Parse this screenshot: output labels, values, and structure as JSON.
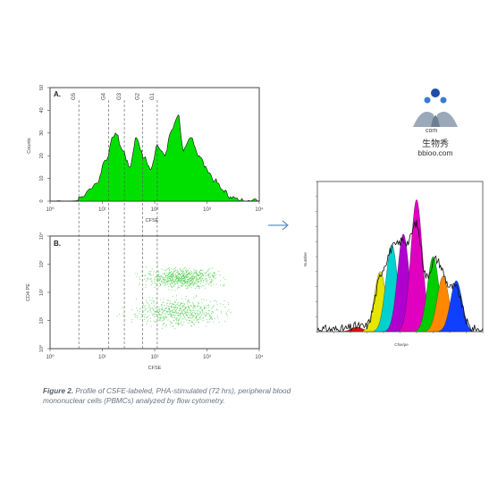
{
  "caption": {
    "label": "Figure 2.",
    "text": "Profile of CSFE-labeled, PHA-stimulated (72 hrs), peripheral blood mononuclear cells (PBMCs) analyzed by flow cytometry."
  },
  "logo": {
    "com": "com",
    "cn": "生物秀",
    "url": "bbioo.com"
  },
  "colors": {
    "fill": "#00e000",
    "scatter": "#44cc44",
    "gate": "#555555",
    "arrow": "#5b8fd6"
  },
  "chart_data": [
    {
      "type": "area",
      "panel_label": "A.",
      "xlabel": "CFSE",
      "ylabel": "Counts",
      "x_scale": "log",
      "x_ticks": [
        "10⁰",
        "10¹",
        "10²",
        "10³",
        "10⁴"
      ],
      "y_ticks": [
        "0",
        "10",
        "20",
        "30",
        "40",
        "50"
      ],
      "ylim": [
        0,
        50
      ],
      "gates": [
        "G5",
        "G4",
        "G3",
        "G2",
        "G1"
      ],
      "gate_positions_log": [
        0.55,
        1.12,
        1.42,
        1.77,
        2.05
      ],
      "series": [
        {
          "x": [
            0.0,
            0.5,
            0.9,
            1.15,
            1.3,
            1.4,
            1.5,
            1.6,
            1.7,
            1.85,
            2.0,
            2.25,
            2.5,
            2.65,
            2.8,
            2.9,
            3.05,
            3.2,
            3.3,
            3.5,
            3.6,
            3.7,
            3.8,
            3.9,
            4.0
          ],
          "y": [
            0,
            0.2,
            0.6,
            1,
            3,
            8,
            17,
            24,
            28,
            20,
            10,
            6,
            2,
            1.5,
            1,
            0.5,
            0.5,
            0.3,
            0.2,
            0.2,
            0.2,
            0.3,
            0.3,
            0.2,
            0.2
          ]
        }
      ],
      "curve_ticks": {
        "x": [
          0.6,
          0.9,
          1.05,
          1.25,
          1.4,
          1.52,
          1.65,
          1.8,
          1.93,
          2.05,
          2.2,
          2.3,
          2.45,
          2.55,
          2.7,
          2.85,
          3.0,
          3.15,
          3.3,
          3.45,
          3.6
        ],
        "y": [
          2,
          8,
          18,
          30,
          22,
          15,
          28,
          19,
          14,
          25,
          20,
          30,
          38,
          22,
          28,
          20,
          14,
          9,
          5,
          2,
          0.5
        ]
      }
    },
    {
      "type": "scatter",
      "panel_label": "B.",
      "xlabel": "CFSE",
      "ylabel": "CD4 PE",
      "x_scale": "log",
      "y_scale": "log",
      "x_ticks": [
        "10⁰",
        "10¹",
        "10²",
        "10³",
        "10⁴"
      ],
      "y_ticks": [
        "10⁰",
        "10¹",
        "10²",
        "10³",
        "10⁴"
      ],
      "clusters": [
        {
          "x_range": [
            1.5,
            3.5
          ],
          "y_range": [
            2.0,
            3.0
          ],
          "density": "high"
        },
        {
          "x_range": [
            1.2,
            3.6
          ],
          "y_range": [
            0.6,
            2.0
          ],
          "density": "medium"
        }
      ]
    },
    {
      "type": "area",
      "xlabel": "Cfse/pe",
      "ylabel": "Number",
      "note": "ModFit-style proliferation deconvolution; generations shown as coloured peaks",
      "peak_colors": [
        "#e01010",
        "#e6e600",
        "#00d0d0",
        "#b000d0",
        "#e000c0",
        "#00cc00",
        "#ff8800",
        "#1040ff"
      ],
      "peak_centers": [
        0.24,
        0.38,
        0.45,
        0.52,
        0.6,
        0.7,
        0.76,
        0.84
      ],
      "peak_heights": [
        3,
        40,
        58,
        65,
        88,
        50,
        37,
        34
      ]
    }
  ]
}
